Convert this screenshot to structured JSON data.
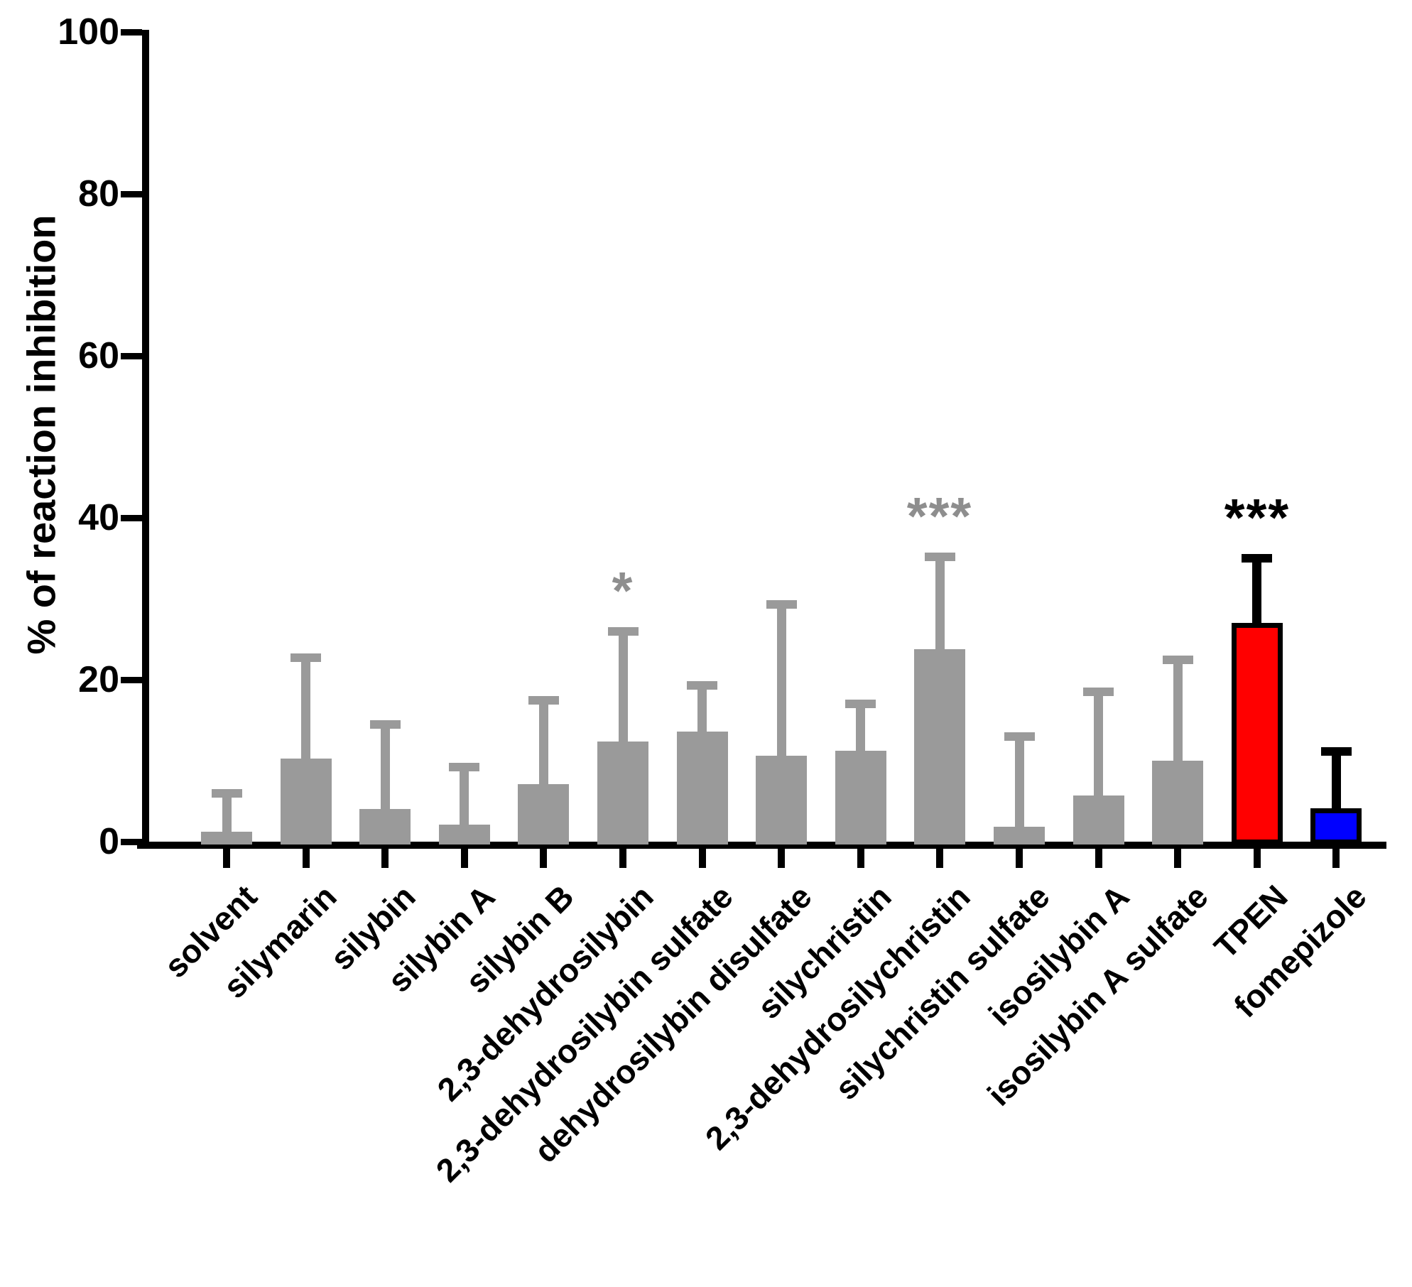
{
  "chart_data": {
    "type": "bar",
    "title": "",
    "xlabel": "",
    "ylabel": "% of reaction inhibition",
    "ylim": [
      0,
      100
    ],
    "yticks": [
      0,
      20,
      40,
      60,
      80,
      100
    ],
    "grid": false,
    "legend": false,
    "categories": [
      "solvent",
      "silymarin",
      "silybin",
      "silybin A",
      "silybin B",
      "2,3-dehydrosilybin",
      "2,3-dehydrosilybin sulfate",
      "dehydrosilybin disulfate",
      "silychristin",
      "2,3-dehydrosilychristin",
      "silychristin sulfate",
      "isosilybin A",
      "isosilybin A sulfate",
      "TPEN",
      "fomepizole"
    ],
    "values": [
      1.2,
      10.3,
      4.0,
      2.1,
      7.1,
      12.4,
      13.6,
      10.6,
      11.2,
      23.8,
      1.8,
      5.7,
      10.0,
      27.0,
      4.1
    ],
    "errors_upper": [
      4.8,
      12.4,
      10.5,
      7.1,
      10.4,
      13.6,
      5.7,
      18.7,
      5.8,
      11.4,
      11.2,
      12.8,
      12.5,
      8.0,
      7.0
    ],
    "bar_colors": [
      "gray",
      "gray",
      "gray",
      "gray",
      "gray",
      "gray",
      "gray",
      "gray",
      "gray",
      "gray",
      "gray",
      "gray",
      "gray",
      "red",
      "blue"
    ],
    "annotations": [
      {
        "category_index": 5,
        "text": "*",
        "color": "gray"
      },
      {
        "category_index": 9,
        "text": "***",
        "color": "gray"
      },
      {
        "category_index": 13,
        "text": "***",
        "color": "black"
      }
    ],
    "colors": {
      "bar_gray": "#9A9A9A",
      "bar_red": "#FF0000",
      "bar_blue": "#0000FF",
      "outline_black": "#000000",
      "annotation_gray": "#8E8E8E",
      "annotation_black": "#000000",
      "axis": "#000000"
    }
  }
}
